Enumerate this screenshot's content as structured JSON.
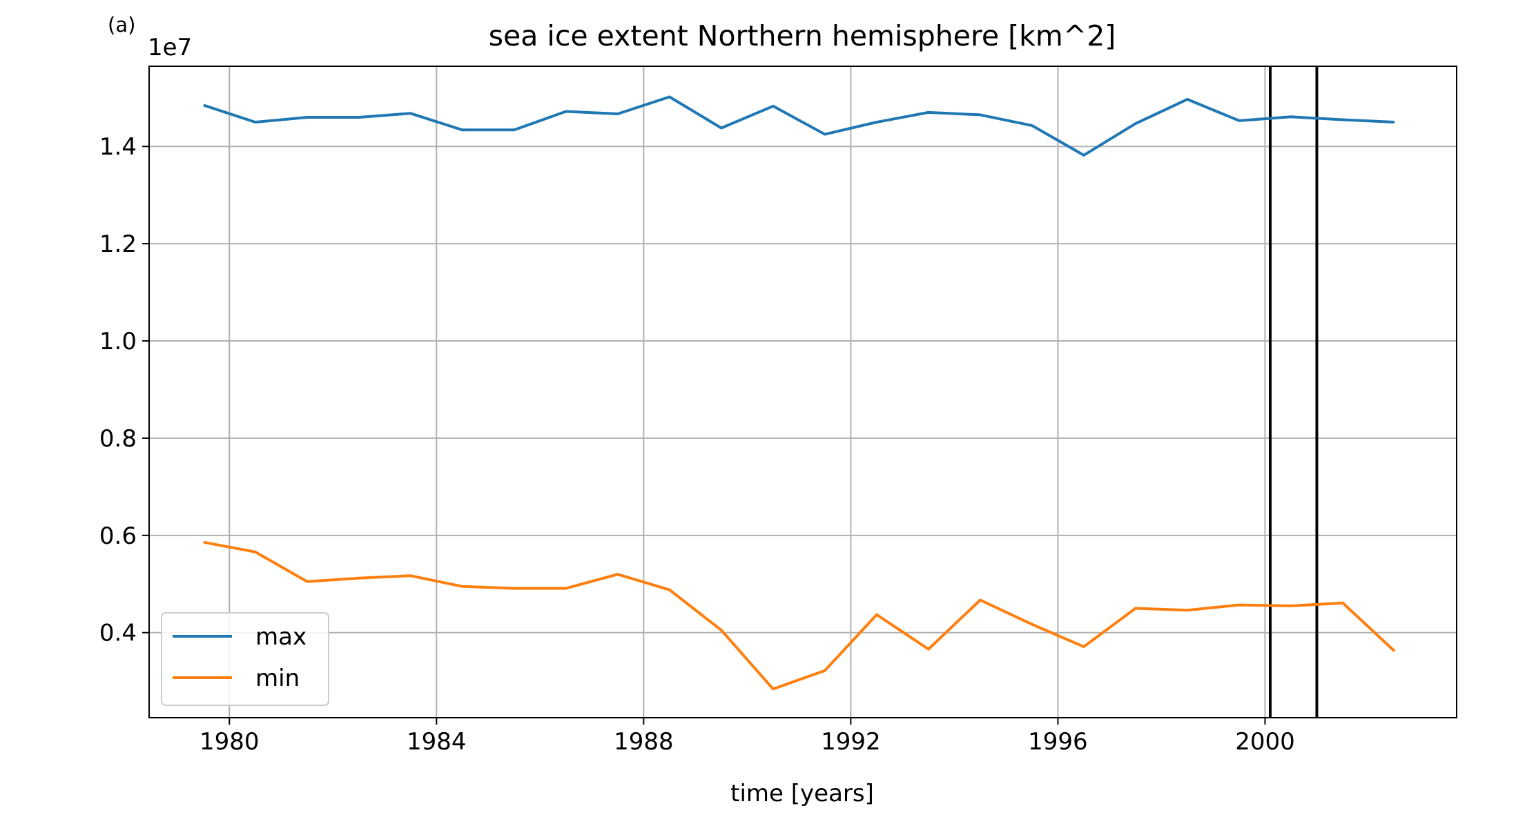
{
  "panel_label": "(a)",
  "chart_data": {
    "type": "line",
    "title": "sea ice extent Northern hemisphere [km^2]",
    "xlabel": "time [years]",
    "ylabel": "",
    "y_offset_label": "1e7",
    "xlim": [
      1978.45,
      2003.7
    ],
    "ylim": [
      2.25,
      15.65
    ],
    "y_unit_scale": 1000000.0,
    "xticks": [
      1980,
      1984,
      1988,
      1992,
      1996,
      2000
    ],
    "xtick_labels": [
      "1980",
      "1984",
      "1988",
      "1992",
      "1996",
      "2000"
    ],
    "yticks": [
      4,
      6,
      8,
      10,
      12,
      14
    ],
    "ytick_labels": [
      "0.4",
      "0.6",
      "0.8",
      "1.0",
      "1.2",
      "1.4"
    ],
    "grid": true,
    "legend_position": "lower-left",
    "vertical_lines": [
      2000.1,
      2001.0
    ],
    "x": [
      1979.5,
      1980.5,
      1981.5,
      1982.5,
      1983.5,
      1984.5,
      1985.5,
      1986.5,
      1987.5,
      1988.5,
      1989.5,
      1990.5,
      1991.5,
      1992.5,
      1993.5,
      1994.5,
      1995.5,
      1996.5,
      1997.5,
      1998.5,
      1999.5,
      2000.5,
      2001.5,
      2002.5
    ],
    "series": [
      {
        "name": "max",
        "color": "#1f77b4",
        "values": [
          14.85,
          14.5,
          14.6,
          14.6,
          14.68,
          14.34,
          14.34,
          14.72,
          14.67,
          15.02,
          14.38,
          14.83,
          14.25,
          14.5,
          14.7,
          14.65,
          14.43,
          13.82,
          14.47,
          14.97,
          14.53,
          14.61,
          14.55,
          14.5
        ]
      },
      {
        "name": "min",
        "color": "#ff7f0e",
        "values": [
          5.86,
          5.66,
          5.05,
          5.12,
          5.17,
          4.95,
          4.91,
          4.91,
          5.2,
          4.88,
          4.05,
          2.84,
          3.22,
          4.37,
          3.66,
          4.67,
          4.17,
          3.71,
          4.5,
          4.46,
          4.57,
          4.55,
          4.61,
          3.62
        ]
      }
    ]
  }
}
